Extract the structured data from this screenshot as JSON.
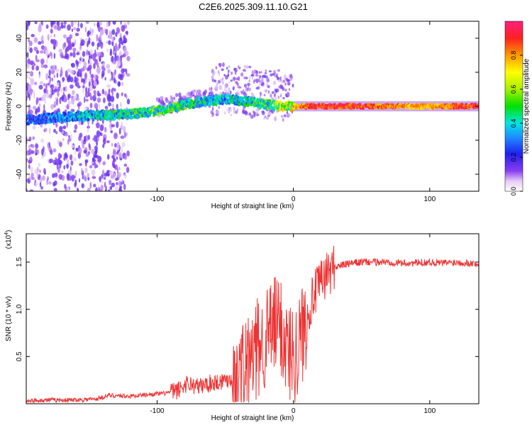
{
  "title": "C2E6.2025.309.11.10.G21",
  "colors": {
    "snr_line": "#ee3333",
    "axis": "#000000",
    "background": "#ffffff"
  },
  "chart_data": [
    {
      "type": "heatmap",
      "name": "spectrogram",
      "xlabel": "Height of straight line (km)",
      "ylabel": "Frequency (Hz)",
      "xlim": [
        -196,
        136
      ],
      "ylim": [
        -50,
        50
      ],
      "xticks": [
        -100,
        0,
        100
      ],
      "xtick_labels": [
        "-100",
        "0",
        "100"
      ],
      "yticks": [
        -40,
        -20,
        0,
        20,
        40
      ],
      "ytick_labels": [
        "-40",
        "-20",
        "0",
        "20",
        "40"
      ],
      "colorbar": {
        "label": "Normalized spectral amplitude",
        "range": [
          0,
          1
        ],
        "ticks": [
          0.0,
          0.2,
          0.4,
          0.6,
          0.8
        ],
        "tick_labels": [
          "0.0",
          "0.2",
          "0.4",
          "0.6",
          "0.8"
        ]
      },
      "signal_trace": [
        {
          "x": -196,
          "f": -8,
          "amp": 0.3
        },
        {
          "x": -160,
          "f": -6,
          "amp": 0.4
        },
        {
          "x": -130,
          "f": -5,
          "amp": 0.5
        },
        {
          "x": -110,
          "f": -4,
          "amp": 0.55
        },
        {
          "x": -95,
          "f": -2,
          "amp": 0.6
        },
        {
          "x": -80,
          "f": 1,
          "amp": 0.55
        },
        {
          "x": -65,
          "f": 3,
          "amp": 0.5
        },
        {
          "x": -50,
          "f": 4,
          "amp": 0.45
        },
        {
          "x": -35,
          "f": 3,
          "amp": 0.5
        },
        {
          "x": -20,
          "f": 1,
          "amp": 0.55
        },
        {
          "x": -10,
          "f": 0,
          "amp": 0.7
        },
        {
          "x": 0,
          "f": 0,
          "amp": 0.8
        },
        {
          "x": 15,
          "f": 0,
          "amp": 0.95
        },
        {
          "x": 60,
          "f": 0,
          "amp": 0.9
        },
        {
          "x": 100,
          "f": 0,
          "amp": 0.8
        },
        {
          "x": 136,
          "f": 0,
          "amp": 0.95
        }
      ]
    },
    {
      "type": "line",
      "name": "snr",
      "xlabel": "Height of straight line (km)",
      "ylabel": "SNR (10 * v/v)",
      "yscale_label": "(x10",
      "yscale_exp": "4",
      "xlim": [
        -196,
        136
      ],
      "ylim": [
        0,
        1.8
      ],
      "xticks": [
        -100,
        0,
        100
      ],
      "xtick_labels": [
        "-100",
        "0",
        "100"
      ],
      "yticks": [
        0.5,
        1.0,
        1.5
      ],
      "ytick_labels": [
        "0.5",
        "1.0",
        "1.5"
      ],
      "series": [
        {
          "name": "SNR",
          "x": [
            -196,
            -180,
            -160,
            -145,
            -135,
            -120,
            -105,
            -95,
            -85,
            -78,
            -70,
            -60,
            -50,
            -40,
            -32,
            -25,
            -20,
            -15,
            -10,
            -5,
            0,
            5,
            10,
            15,
            20,
            25,
            30,
            40,
            50,
            60,
            70,
            80,
            90,
            100,
            110,
            120,
            136
          ],
          "y": [
            0.03,
            0.04,
            0.04,
            0.05,
            0.09,
            0.08,
            0.1,
            0.11,
            0.14,
            0.22,
            0.18,
            0.22,
            0.25,
            0.3,
            0.45,
            0.6,
            0.7,
            0.8,
            0.85,
            0.6,
            0.5,
            0.65,
            0.95,
            1.15,
            1.28,
            1.38,
            1.45,
            1.48,
            1.5,
            1.5,
            1.5,
            1.49,
            1.49,
            1.5,
            1.49,
            1.5,
            1.48
          ]
        }
      ]
    }
  ]
}
